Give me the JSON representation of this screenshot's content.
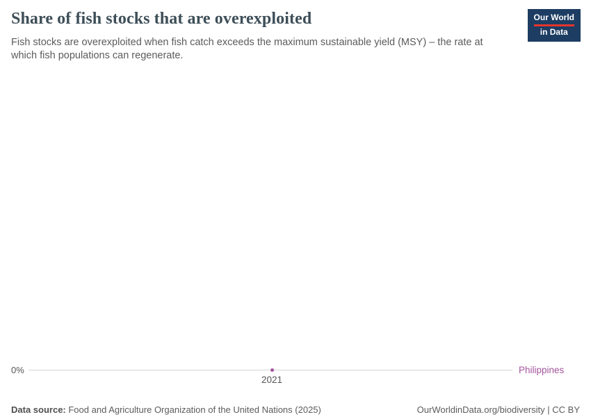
{
  "header": {
    "title": "Share of fish stocks that are overexploited",
    "subtitle": "Fish stocks are overexploited when fish catch exceeds the maximum sustainable yield (MSY) – the rate at which fish populations can regenerate.",
    "logo": {
      "line1": "Our World",
      "line2": "in Data"
    }
  },
  "chart_data": {
    "type": "line",
    "title": "Share of fish stocks that are overexploited",
    "x": [
      2021
    ],
    "series": [
      {
        "name": "Philippines",
        "values": [
          0
        ],
        "color": "#a2559c"
      }
    ],
    "xlabel": "",
    "ylabel": "",
    "x_ticks": [
      "2021"
    ],
    "y_ticks": [
      "0%"
    ],
    "ylim": [
      0,
      0
    ],
    "grid": false,
    "legend_position": "end-of-line-right"
  },
  "footer": {
    "source_label": "Data source:",
    "source_text": " Food and Agriculture Organization of the United Nations (2025)",
    "attribution": "OurWorldinData.org/biodiversity | CC BY"
  },
  "colors": {
    "series": "#a2559c",
    "title_text": "#3d4e58",
    "body_text": "#5b5b5b",
    "axis_line": "#d4d4d4",
    "logo_background": "#1d3d63",
    "logo_accent": "#e5362c"
  }
}
